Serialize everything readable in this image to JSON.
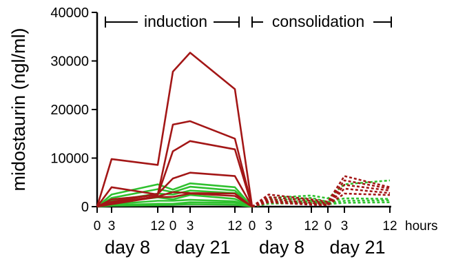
{
  "chart_data": {
    "type": "line",
    "ylabel": "midostaurin (ngl/ml)",
    "ylim": [
      0,
      40000
    ],
    "yticks": [
      0,
      10000,
      20000,
      30000,
      40000
    ],
    "ytick_labels": [
      "0",
      "10000",
      "20000",
      "30000",
      "40000"
    ],
    "x_tick_labels": [
      "0",
      "3",
      "12",
      "0",
      "3",
      "12",
      "0",
      "3",
      "12",
      "0",
      "3",
      "12"
    ],
    "x_unit": "hours",
    "day_labels": [
      "day 8",
      "day 21",
      "day 8",
      "day 21"
    ],
    "phases": [
      {
        "label": "induction",
        "from": 0,
        "to": 1
      },
      {
        "label": "consolidation",
        "from": 2,
        "to": 3
      }
    ],
    "colors": {
      "red": "#a31616",
      "green": "#2fc12f"
    },
    "induction": {
      "x_segments": [
        [
          "d8_0",
          "d8_3",
          "d8_12"
        ],
        [
          "d21_0",
          "d21_3",
          "d21_12"
        ]
      ],
      "red_series": [
        [
          0,
          9800,
          8600,
          27800,
          31700,
          24200,
          0
        ],
        [
          0,
          4000,
          2500,
          16900,
          17600,
          14000,
          0
        ],
        [
          0,
          1500,
          2400,
          11400,
          13500,
          11800,
          0
        ],
        [
          0,
          1000,
          2600,
          5800,
          7000,
          6300,
          0
        ],
        [
          0,
          800,
          2100,
          3000,
          2800,
          2700,
          0
        ],
        [
          0,
          500,
          2000,
          2000,
          2700,
          2200,
          0
        ]
      ],
      "green_series": [
        [
          0,
          2500,
          4600,
          3500,
          4800,
          4000,
          0
        ],
        [
          0,
          1800,
          3600,
          3000,
          4100,
          3300,
          0
        ],
        [
          0,
          1200,
          2700,
          2500,
          3300,
          2800,
          0
        ],
        [
          0,
          800,
          1900,
          1500,
          2400,
          1600,
          0
        ],
        [
          0,
          500,
          1200,
          1200,
          1400,
          1100,
          0
        ],
        [
          0,
          300,
          600,
          600,
          900,
          800,
          0
        ],
        [
          0,
          200,
          300,
          400,
          500,
          400,
          0
        ]
      ]
    },
    "consolidation": {
      "red_series": [
        [
          0,
          2500,
          1500,
          1000,
          6300,
          4000
        ],
        [
          0,
          2000,
          1200,
          700,
          5400,
          3700
        ],
        [
          0,
          1600,
          800,
          500,
          4500,
          3300
        ],
        [
          0,
          1200,
          600,
          400,
          3700,
          2800
        ],
        [
          0,
          900,
          400,
          300,
          2700,
          2400
        ]
      ],
      "green_series": [
        [
          0,
          1800,
          2300,
          1700,
          4600,
          5400
        ],
        [
          0,
          1300,
          1800,
          1000,
          1700,
          1600
        ],
        [
          0,
          900,
          1200,
          700,
          1200,
          1300
        ],
        [
          0,
          600,
          800,
          500,
          800,
          900
        ]
      ]
    }
  }
}
